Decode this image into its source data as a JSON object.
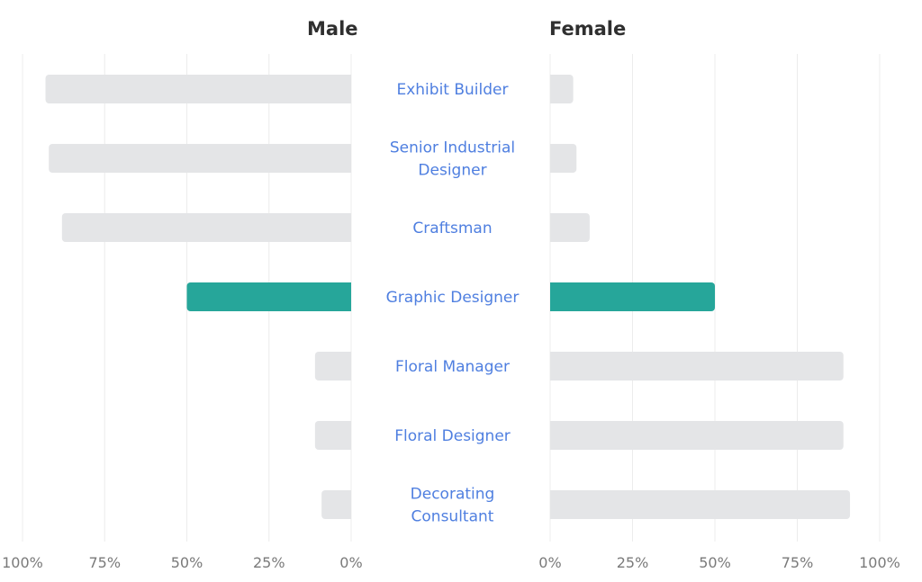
{
  "headers": {
    "left": "Male",
    "right": "Female"
  },
  "chart_data": {
    "type": "bar",
    "orientation": "horizontal",
    "layout": "butterfly",
    "categories": [
      "Exhibit Builder",
      "Senior Industrial Designer",
      "Craftsman",
      "Graphic Designer",
      "Floral Manager",
      "Floral Designer",
      "Decorating Consultant"
    ],
    "series": [
      {
        "name": "Male",
        "values": [
          93,
          92,
          88,
          50,
          11,
          11,
          9
        ]
      },
      {
        "name": "Female",
        "values": [
          7,
          8,
          12,
          50,
          89,
          89,
          91
        ]
      }
    ],
    "highlight_index": 3,
    "xlim": [
      0,
      100
    ],
    "ticks": [
      "0%",
      "25%",
      "50%",
      "75%",
      "100%"
    ],
    "left_ticks": [
      "100%",
      "75%",
      "50%",
      "25%",
      "0%"
    ],
    "grid": true,
    "colors": {
      "bar": "#e4e5e7",
      "highlight": "#26a69a",
      "label": "#4f7fe0",
      "grid": "#ececec",
      "tick": "#7a7a7a",
      "header": "#2f2f2f"
    }
  }
}
